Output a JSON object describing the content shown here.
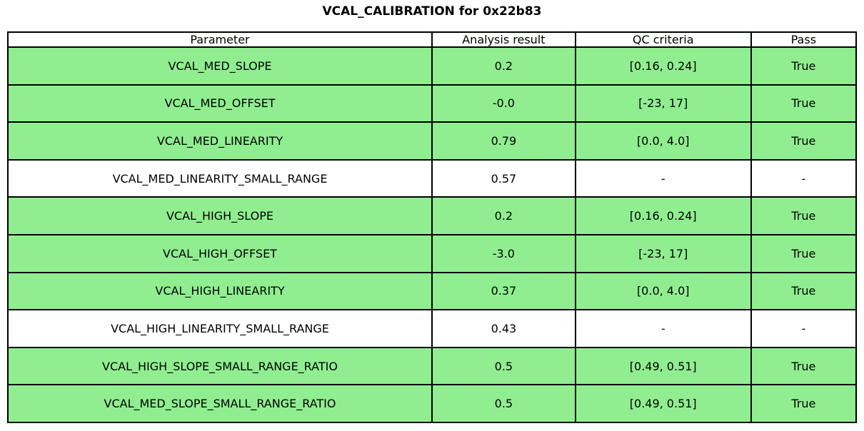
{
  "title": "VCAL_CALIBRATION for 0x22b83",
  "colors": {
    "pass_row_green": "#90ee90",
    "neutral_row_white": "#ffffff",
    "border_black": "#000000"
  },
  "chart_data": {
    "type": "table",
    "title": "VCAL_CALIBRATION for 0x22b83",
    "columns": [
      "Parameter",
      "Analysis result",
      "QC criteria",
      "Pass"
    ],
    "rows": [
      {
        "param": "VCAL_MED_SLOPE",
        "result": "0.2",
        "criteria": "[0.16, 0.24]",
        "pass": "True",
        "row_color": "#90ee90"
      },
      {
        "param": "VCAL_MED_OFFSET",
        "result": "-0.0",
        "criteria": "[-23, 17]",
        "pass": "True",
        "row_color": "#90ee90"
      },
      {
        "param": "VCAL_MED_LINEARITY",
        "result": "0.79",
        "criteria": "[0.0, 4.0]",
        "pass": "True",
        "row_color": "#90ee90"
      },
      {
        "param": "VCAL_MED_LINEARITY_SMALL_RANGE",
        "result": "0.57",
        "criteria": "-",
        "pass": "-",
        "row_color": "#ffffff"
      },
      {
        "param": "VCAL_HIGH_SLOPE",
        "result": "0.2",
        "criteria": "[0.16, 0.24]",
        "pass": "True",
        "row_color": "#90ee90"
      },
      {
        "param": "VCAL_HIGH_OFFSET",
        "result": "-3.0",
        "criteria": "[-23, 17]",
        "pass": "True",
        "row_color": "#90ee90"
      },
      {
        "param": "VCAL_HIGH_LINEARITY",
        "result": "0.37",
        "criteria": "[0.0, 4.0]",
        "pass": "True",
        "row_color": "#90ee90"
      },
      {
        "param": "VCAL_HIGH_LINEARITY_SMALL_RANGE",
        "result": "0.43",
        "criteria": "-",
        "pass": "-",
        "row_color": "#ffffff"
      },
      {
        "param": "VCAL_HIGH_SLOPE_SMALL_RANGE_RATIO",
        "result": "0.5",
        "criteria": "[0.49, 0.51]",
        "pass": "True",
        "row_color": "#90ee90"
      },
      {
        "param": "VCAL_MED_SLOPE_SMALL_RANGE_RATIO",
        "result": "0.5",
        "criteria": "[0.49, 0.51]",
        "pass": "True",
        "row_color": "#90ee90"
      }
    ]
  }
}
